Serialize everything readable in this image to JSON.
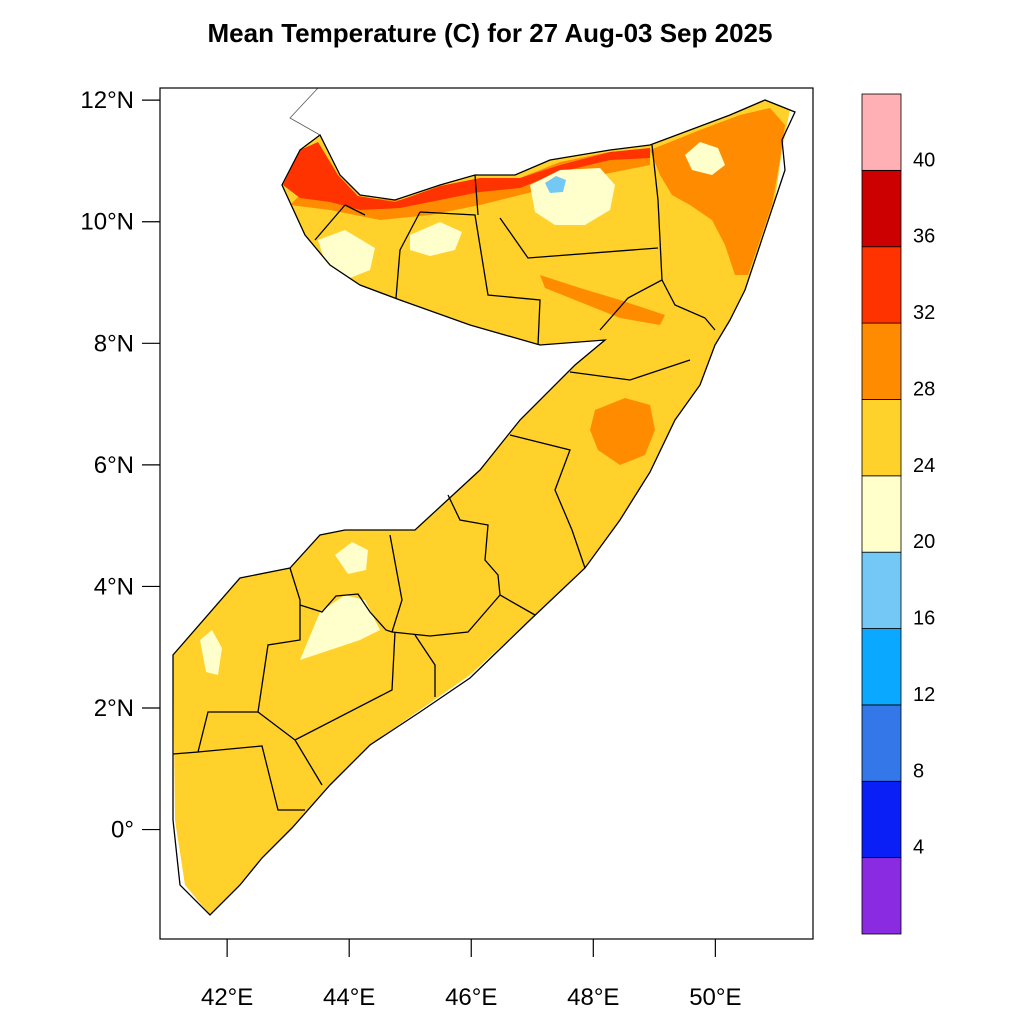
{
  "title": "Mean Temperature (C) for 27 Aug-03 Sep 2025",
  "map": {
    "lon_range": [
      40.9,
      51.6
    ],
    "lat_range": [
      -1.8,
      12.2
    ],
    "x_ticks": [
      {
        "lon": 42,
        "label": "42°E"
      },
      {
        "lon": 44,
        "label": "44°E"
      },
      {
        "lon": 46,
        "label": "46°E"
      },
      {
        "lon": 48,
        "label": "48°E"
      },
      {
        "lon": 50,
        "label": "50°E"
      }
    ],
    "y_ticks": [
      {
        "lat": 12,
        "label": "12°N"
      },
      {
        "lat": 10,
        "label": "10°N"
      },
      {
        "lat": 8,
        "label": "8°N"
      },
      {
        "lat": 6,
        "label": "6°N"
      },
      {
        "lat": 4,
        "label": "4°N"
      },
      {
        "lat": 2,
        "label": "2°N"
      },
      {
        "lat": 0,
        "label": "0°"
      }
    ]
  },
  "colorbar": {
    "bins": [
      {
        "min": 0,
        "max": 4,
        "color": "#8a2be2"
      },
      {
        "min": 4,
        "max": 8,
        "color": "#0a1ff5"
      },
      {
        "min": 8,
        "max": 12,
        "color": "#3377e8"
      },
      {
        "min": 12,
        "max": 16,
        "color": "#0aa8ff"
      },
      {
        "min": 16,
        "max": 20,
        "color": "#73c8f5"
      },
      {
        "min": 20,
        "max": 24,
        "color": "#ffffcc"
      },
      {
        "min": 24,
        "max": 28,
        "color": "#ffd12a"
      },
      {
        "min": 28,
        "max": 32,
        "color": "#ff8c00"
      },
      {
        "min": 32,
        "max": 36,
        "color": "#ff3300"
      },
      {
        "min": 36,
        "max": 40,
        "color": "#cc0000"
      },
      {
        "min": 40,
        "max": 44,
        "color": "#ffb0b5"
      }
    ],
    "labels": [
      "4",
      "8",
      "12",
      "16",
      "20",
      "24",
      "28",
      "32",
      "36",
      "40"
    ]
  }
}
